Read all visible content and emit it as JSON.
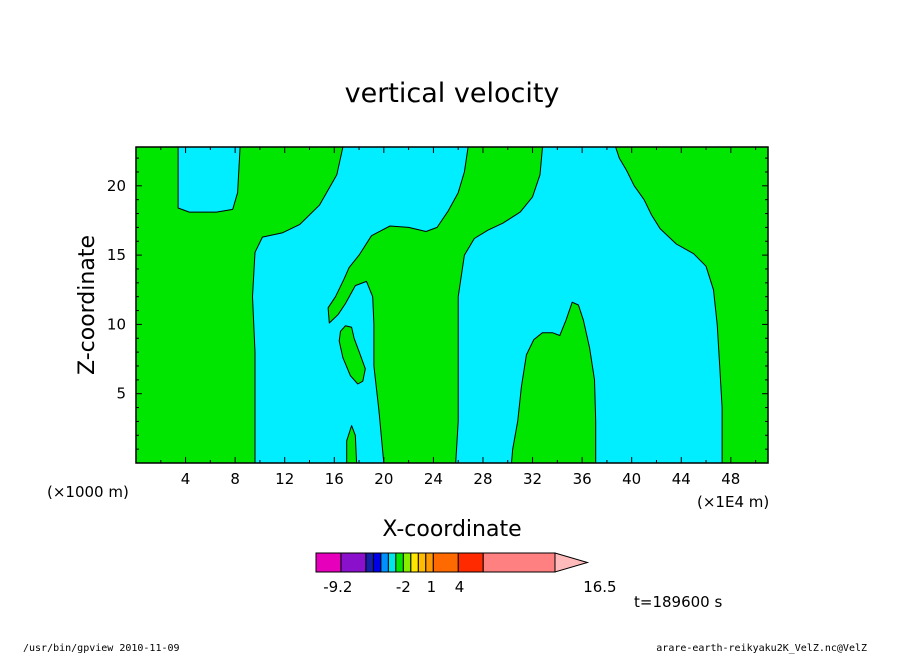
{
  "chart_data": {
    "type": "heatmap",
    "title": "vertical velocity",
    "xlabel": "X-coordinate",
    "ylabel": "Z-coordinate",
    "x_unit": "(×1000 m)",
    "x_unit_right": "(×1E4 m)",
    "xlim": [
      0,
      51
    ],
    "ylim": [
      0,
      22.8
    ],
    "x_ticks": [
      4,
      8,
      12,
      16,
      20,
      24,
      28,
      32,
      36,
      40,
      44,
      48
    ],
    "y_ticks": [
      5,
      10,
      15,
      20
    ],
    "background_color": "#00e600",
    "regions": [
      {
        "color": "#00eeff",
        "points": [
          [
            3.4,
            22.8
          ],
          [
            3.4,
            18.4
          ],
          [
            4.3,
            18.1
          ],
          [
            6.5,
            18.1
          ],
          [
            7.8,
            18.3
          ],
          [
            8.2,
            19.5
          ],
          [
            8.4,
            22.8
          ]
        ]
      },
      {
        "color": "#00eeff",
        "points": [
          [
            16.7,
            22.8
          ],
          [
            16.2,
            20.8
          ],
          [
            14.8,
            18.6
          ],
          [
            13.2,
            17.2
          ],
          [
            11.8,
            16.6
          ],
          [
            10.2,
            16.3
          ],
          [
            9.6,
            15.2
          ],
          [
            9.4,
            12.0
          ],
          [
            9.6,
            8.0
          ],
          [
            9.6,
            0
          ],
          [
            17.0,
            0
          ],
          [
            17.0,
            1.6
          ],
          [
            17.4,
            2.7
          ],
          [
            17.7,
            2.0
          ],
          [
            17.8,
            0
          ],
          [
            20.0,
            0
          ],
          [
            19.6,
            3.8
          ],
          [
            19.2,
            7.0
          ],
          [
            19.2,
            10.0
          ],
          [
            19.1,
            12.0
          ],
          [
            18.6,
            13.1
          ],
          [
            17.7,
            12.8
          ],
          [
            16.9,
            11.5
          ],
          [
            16.3,
            10.7
          ],
          [
            15.6,
            10.1
          ],
          [
            15.5,
            11.2
          ],
          [
            16.1,
            12.0
          ],
          [
            16.8,
            13.3
          ],
          [
            17.2,
            14.1
          ],
          [
            18.0,
            15.0
          ],
          [
            19.0,
            16.4
          ],
          [
            20.5,
            17.1
          ],
          [
            22.0,
            17.0
          ],
          [
            23.4,
            16.7
          ],
          [
            24.3,
            17.0
          ],
          [
            25.2,
            18.2
          ],
          [
            26.0,
            19.5
          ],
          [
            26.5,
            21.0
          ],
          [
            26.8,
            22.8
          ]
        ]
      },
      {
        "color": "#00e600",
        "points": [
          [
            16.5,
            9.5
          ],
          [
            16.9,
            9.9
          ],
          [
            17.4,
            9.8
          ],
          [
            17.6,
            9.0
          ],
          [
            18.1,
            7.8
          ],
          [
            18.5,
            6.8
          ],
          [
            18.3,
            5.9
          ],
          [
            17.9,
            5.7
          ],
          [
            17.3,
            6.3
          ],
          [
            16.7,
            7.6
          ],
          [
            16.4,
            8.8
          ]
        ]
      },
      {
        "color": "#00eeff",
        "points": [
          [
            32.8,
            22.8
          ],
          [
            32.6,
            20.8
          ],
          [
            32.0,
            19.2
          ],
          [
            31.0,
            18.1
          ],
          [
            29.6,
            17.3
          ],
          [
            28.4,
            16.8
          ],
          [
            27.3,
            16.2
          ],
          [
            26.5,
            15.0
          ],
          [
            26.0,
            12.0
          ],
          [
            26.0,
            3.0
          ],
          [
            25.8,
            0
          ],
          [
            30.3,
            0
          ],
          [
            30.4,
            1.0
          ],
          [
            30.8,
            3.0
          ],
          [
            31.1,
            5.5
          ],
          [
            31.5,
            7.8
          ],
          [
            32.1,
            8.9
          ],
          [
            32.8,
            9.4
          ],
          [
            33.6,
            9.4
          ],
          [
            34.2,
            9.2
          ],
          [
            34.7,
            10.3
          ],
          [
            35.2,
            11.6
          ],
          [
            35.7,
            11.4
          ],
          [
            36.1,
            10.3
          ],
          [
            36.6,
            8.3
          ],
          [
            37.0,
            6.0
          ],
          [
            37.1,
            3.0
          ],
          [
            37.1,
            0
          ],
          [
            47.3,
            0
          ],
          [
            47.3,
            4.0
          ],
          [
            47.1,
            7.0
          ],
          [
            46.9,
            10.0
          ],
          [
            46.6,
            12.5
          ],
          [
            46.0,
            14.2
          ],
          [
            45.0,
            15.1
          ],
          [
            43.6,
            15.8
          ],
          [
            42.3,
            16.9
          ],
          [
            41.6,
            17.9
          ],
          [
            41.0,
            19.0
          ],
          [
            40.2,
            20.0
          ],
          [
            39.6,
            21.1
          ],
          [
            39.0,
            22.0
          ],
          [
            38.7,
            22.8
          ]
        ]
      }
    ],
    "colorbar": {
      "colors": [
        "#e600bb",
        "#8a10cc",
        "#1420a8",
        "#0000e8",
        "#0090ff",
        "#00e6e6",
        "#00e600",
        "#88ee00",
        "#ffe600",
        "#ffbb00",
        "#ff9900",
        "#ff6a00",
        "#ff2a00",
        "#ff8080",
        "#ffbbbb"
      ],
      "widths": [
        0.08,
        0.08,
        0.024,
        0.024,
        0.024,
        0.024,
        0.024,
        0.024,
        0.024,
        0.024,
        0.024,
        0.08,
        0.08,
        0.23,
        0.104
      ],
      "labels": [
        "-9.2",
        "-2",
        "1",
        "4",
        "16.5"
      ],
      "label_positions": [
        0.07,
        0.28,
        0.37,
        0.46,
        0.91
      ]
    }
  },
  "time_label": "t=189600 s",
  "footer_left": "/usr/bin/gpview  2010-11-09",
  "footer_right": "arare-earth-reikyaku2K_VelZ.nc@VelZ"
}
